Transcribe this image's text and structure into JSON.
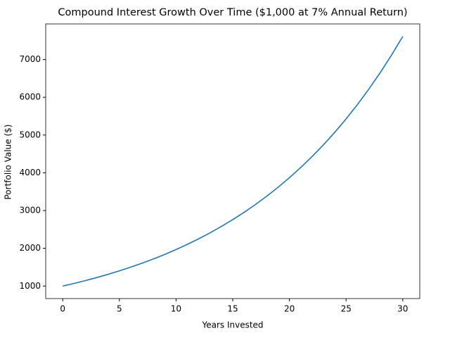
{
  "chart_data": {
    "type": "line",
    "title": "Compound Interest Growth Over Time ($1,000 at 7% Annual Return)",
    "x_label": "Years Invested",
    "y_label": "Portfolio Value ($)",
    "x": [
      0,
      1,
      2,
      3,
      4,
      5,
      6,
      7,
      8,
      9,
      10,
      11,
      12,
      13,
      14,
      15,
      16,
      17,
      18,
      19,
      20,
      21,
      22,
      23,
      24,
      25,
      26,
      27,
      28,
      29,
      30
    ],
    "series": [
      {
        "color": "#1f77b4",
        "values": [
          1000,
          1070,
          1145,
          1225,
          1311,
          1403,
          1501,
          1606,
          1718,
          1838,
          1967,
          2105,
          2252,
          2410,
          2579,
          2759,
          2952,
          3159,
          3380,
          3617,
          3870,
          4141,
          4430,
          4741,
          5072,
          5427,
          5807,
          6214,
          6649,
          7114,
          7612
        ]
      }
    ],
    "xlim": [
      -1.5,
      31.5
    ],
    "xticks": [
      0,
      5,
      10,
      15,
      20,
      25,
      30
    ],
    "ylim": [
      669,
      7943
    ],
    "yticks": [
      1000,
      2000,
      3000,
      4000,
      5000,
      6000,
      7000
    ]
  }
}
